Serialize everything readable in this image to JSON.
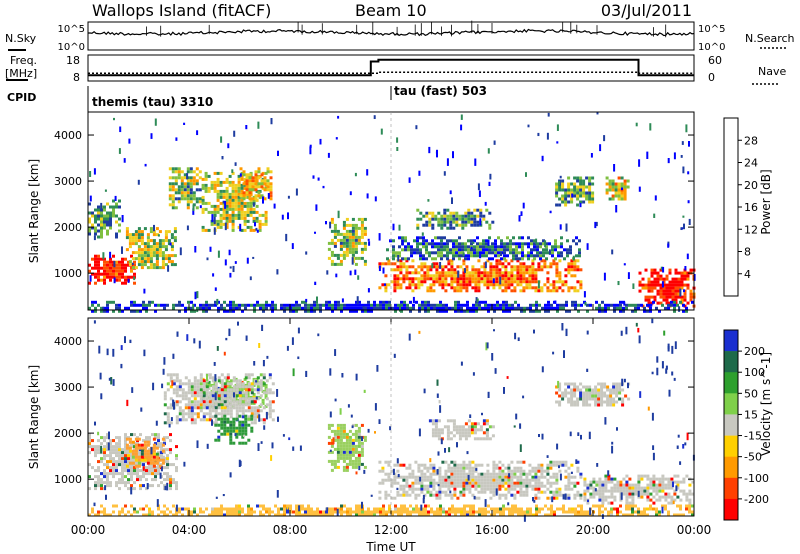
{
  "header": {
    "station": "Wallops Island (fitACF)",
    "beam": "Beam 10",
    "date": "03/Jul/2011"
  },
  "noise_panel": {
    "left_label": "N.Sky",
    "right_label": "N.Search",
    "left_ticks": [
      "10^5",
      "10^0"
    ],
    "right_ticks": [
      "10^5",
      "10^0"
    ]
  },
  "freq_panel": {
    "left_label_line1": "Freq.",
    "left_label_line2": "[MHz]",
    "right_label": "Nave",
    "left_ticks": [
      "18",
      "8"
    ],
    "right_ticks": [
      "60",
      "0"
    ],
    "freq_segments": [
      {
        "start_h": 0,
        "end_h": 11.2,
        "value_mhz": 10.2
      },
      {
        "start_h": 11.2,
        "end_h": 11.5,
        "value_mhz": 15.5
      },
      {
        "start_h": 11.5,
        "end_h": 21.8,
        "value_mhz": 16.2
      },
      {
        "start_h": 21.8,
        "end_h": 24,
        "value_mhz": 10.2
      }
    ],
    "nave_segments": [
      {
        "start_h": 0,
        "end_h": 11.5,
        "value": 18
      },
      {
        "start_h": 11.5,
        "end_h": 21.8,
        "value": 20
      },
      {
        "start_h": 21.8,
        "end_h": 24,
        "value": 18
      }
    ]
  },
  "cpid": {
    "label": "CPID",
    "segments": [
      {
        "start_h": 0,
        "text": "themis (tau) 3310"
      },
      {
        "start_h": 11.5,
        "text": "tau (fast) 503"
      }
    ]
  },
  "chart_data": [
    {
      "type": "heatmap",
      "name": "power",
      "ylabel": "Slant Range [km]",
      "yticks": [
        "1000",
        "2000",
        "3000",
        "4000"
      ],
      "ylim": [
        200,
        4500
      ],
      "xlim": [
        0,
        24
      ],
      "colorbar_label": "Power [dB]",
      "colorbar_ticks": [
        "4",
        "8",
        "12",
        "16",
        "20",
        "24",
        "28"
      ],
      "colorbar_colors": [
        "#0000ff",
        "#1e3ca0",
        "#2e8b57",
        "#7fbf40",
        "#f0d020",
        "#ff9a00",
        "#ff5000",
        "#ff0000"
      ],
      "regions": [
        {
          "t0": 0.0,
          "t1": 1.8,
          "r0": 800,
          "r1": 1400,
          "level": 0.95
        },
        {
          "t0": 1.5,
          "t1": 3.5,
          "r0": 1100,
          "r1": 2000,
          "level": 0.5
        },
        {
          "t0": 0.0,
          "t1": 1.2,
          "r0": 1800,
          "r1": 2600,
          "level": 0.35
        },
        {
          "t0": 3.2,
          "t1": 4.5,
          "r0": 2400,
          "r1": 3300,
          "level": 0.45
        },
        {
          "t0": 4.5,
          "t1": 7.0,
          "r0": 1900,
          "r1": 3200,
          "level": 0.5
        },
        {
          "t0": 6.0,
          "t1": 7.3,
          "r0": 2600,
          "r1": 3300,
          "level": 0.6
        },
        {
          "t0": 9.5,
          "t1": 11.0,
          "r0": 1200,
          "r1": 2200,
          "level": 0.45
        },
        {
          "t0": 11.5,
          "t1": 19.5,
          "r0": 600,
          "r1": 1300,
          "level": 0.75
        },
        {
          "t0": 11.8,
          "t1": 19.5,
          "r0": 1300,
          "r1": 1800,
          "level": 0.25
        },
        {
          "t0": 13.0,
          "t1": 16.0,
          "r0": 2000,
          "r1": 2400,
          "level": 0.35
        },
        {
          "t0": 18.5,
          "t1": 20.0,
          "r0": 2500,
          "r1": 3100,
          "level": 0.35
        },
        {
          "t0": 20.5,
          "t1": 21.4,
          "r0": 2600,
          "r1": 3100,
          "level": 0.55
        },
        {
          "t0": 21.8,
          "t1": 24.0,
          "r0": 300,
          "r1": 1100,
          "level": 0.95
        },
        {
          "t0": 0.0,
          "t1": 24.0,
          "r0": 200,
          "r1": 400,
          "level": 0.15
        }
      ]
    },
    {
      "type": "heatmap",
      "name": "velocity",
      "ylabel": "Slant Range [km]",
      "yticks": [
        "1000",
        "2000",
        "3000",
        "4000"
      ],
      "ylim": [
        200,
        4500
      ],
      "xlim": [
        0,
        24
      ],
      "xticks": [
        "00:00",
        "04:00",
        "08:00",
        "12:00",
        "16:00",
        "20:00",
        "00:00"
      ],
      "xlabel": "Time UT",
      "colorbar_label": "Velocity [m s^-1]",
      "colorbar_ticks": [
        "200",
        "100",
        "50",
        "15",
        "-15",
        "-50",
        "-100",
        "-200"
      ],
      "colorbar_colors": [
        "#1a2fd0",
        "#1e6a4a",
        "#2ea02e",
        "#7fd04a",
        "#c8c8c0",
        "#ffd000",
        "#ff9a00",
        "#ff4000",
        "#ff0000"
      ],
      "regions": [
        {
          "t0": 0.0,
          "t1": 3.5,
          "r0": 800,
          "r1": 2000,
          "color": "#c8c8c0"
        },
        {
          "t0": 1.5,
          "t1": 3.0,
          "r0": 1300,
          "r1": 1900,
          "color": "#ffa030"
        },
        {
          "t0": 4.5,
          "t1": 7.0,
          "r0": 2600,
          "r1": 3200,
          "color": "#7fd04a"
        },
        {
          "t0": 3.0,
          "t1": 7.3,
          "r0": 2200,
          "r1": 3300,
          "color": "#c8c8c0"
        },
        {
          "t0": 5.0,
          "t1": 6.5,
          "r0": 1800,
          "r1": 2400,
          "color": "#2e9a3a"
        },
        {
          "t0": 9.5,
          "t1": 11.0,
          "r0": 1200,
          "r1": 2200,
          "color": "#9ad060"
        },
        {
          "t0": 11.5,
          "t1": 19.5,
          "r0": 600,
          "r1": 1400,
          "color": "#c8c8c0"
        },
        {
          "t0": 19.5,
          "t1": 24.0,
          "r0": 500,
          "r1": 1100,
          "color": "#c8c8c0"
        },
        {
          "t0": 13.5,
          "t1": 16.0,
          "r0": 1900,
          "r1": 2300,
          "color": "#c8c8c0"
        },
        {
          "t0": 18.5,
          "t1": 21.4,
          "r0": 2600,
          "r1": 3100,
          "color": "#c8c8c0"
        },
        {
          "t0": 0.0,
          "t1": 24.0,
          "r0": 200,
          "r1": 450,
          "color": "#ffc040"
        }
      ]
    }
  ]
}
